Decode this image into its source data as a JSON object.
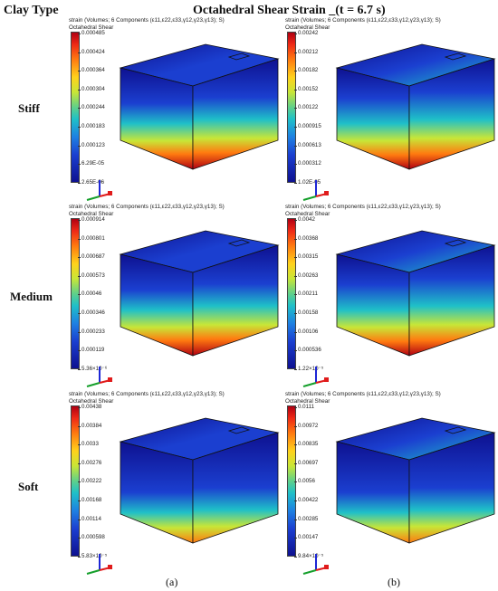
{
  "figure": {
    "clay_type_heading": "Clay Type",
    "main_title": "Octahedral Shear Strain _(t = 6.7 s)",
    "row_labels": [
      "Stiff",
      "Medium",
      "Soft"
    ],
    "column_labels": [
      "(a)",
      "(b)"
    ]
  },
  "panels": [
    {
      "header1": "strain (Volumes; 6 Components (ε11,ε22,ε33,γ12,γ23,γ13); S)",
      "header2": "Octahedral Shear",
      "ticks": [
        "0.000485",
        "0.000424",
        "0.000364",
        "0.000304",
        "0.000244",
        "0.000183",
        "0.000123",
        "6.29E-05",
        "2.65E-06"
      ]
    },
    {
      "header1": "strain (Volumes; 6 Components (ε11,ε22,ε33,γ12,γ23,γ13); S)",
      "header2": "Octahedral Shear",
      "ticks": [
        "0.00242",
        "0.00212",
        "0.00182",
        "0.00152",
        "0.00122",
        "0.000915",
        "0.000613",
        "0.000312",
        "1.02E-05"
      ]
    },
    {
      "header1": "strain (Volumes; 6 Components (ε11,ε22,ε33,γ12,γ23,γ13); S)",
      "header2": "Octahedral Shear",
      "ticks": [
        "0.000914",
        "0.000801",
        "0.000687",
        "0.000573",
        "0.00046",
        "0.000346",
        "0.000233",
        "0.000119",
        "5.36×10⁻⁶"
      ]
    },
    {
      "header1": "strain (Volumes; 6 Components (ε11,ε22,ε33,γ12,γ23,γ13); S)",
      "header2": "Octahedral Shear",
      "ticks": [
        "0.0042",
        "0.00368",
        "0.00315",
        "0.00263",
        "0.00211",
        "0.00158",
        "0.00106",
        "0.000536",
        "1.22×10⁻⁵"
      ]
    },
    {
      "header1": "strain (Volumes; 6 Components (ε11,ε22,ε33,γ12,γ23,γ13); S)",
      "header2": "Octahedral Shear",
      "ticks": [
        "0.00438",
        "0.00384",
        "0.0033",
        "0.00276",
        "0.00222",
        "0.00168",
        "0.00114",
        "0.000598",
        "5.83×10⁻⁵"
      ]
    },
    {
      "header1": "strain (Volumes; 6 Components (ε11,ε22,ε33,γ12,γ23,γ13); S)",
      "header2": "Octahedral Shear",
      "ticks": [
        "0.0111",
        "0.00972",
        "0.00835",
        "0.00697",
        "0.0056",
        "0.00422",
        "0.00285",
        "0.00147",
        "9.84×10⁻⁵"
      ]
    }
  ],
  "colors": {
    "max": "#b00012",
    "high": "#ff7a10",
    "mid": "#c8e637",
    "midlow": "#1fc0c8",
    "low": "#1b3fd0",
    "min": "#0e1190"
  }
}
